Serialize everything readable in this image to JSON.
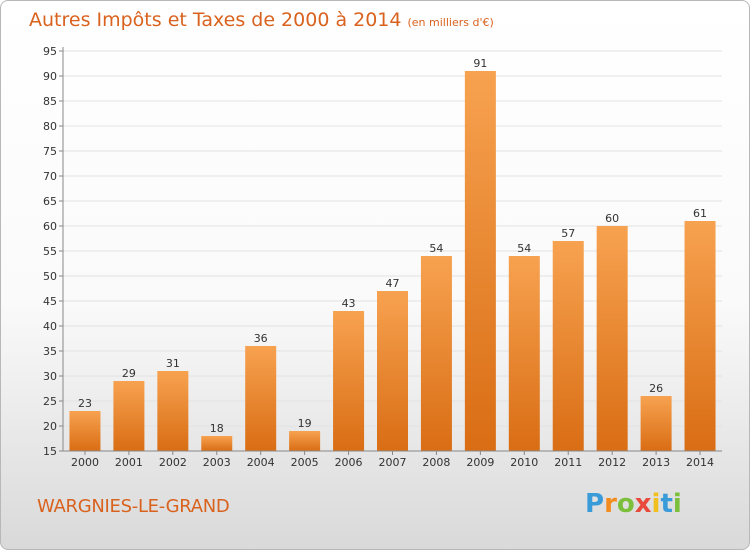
{
  "chart_data": {
    "type": "bar",
    "title": "Autres Impôts et Taxes de 2000 à 2014",
    "subtitle": "(en milliers d'€)",
    "categories": [
      "2000",
      "2001",
      "2002",
      "2003",
      "2004",
      "2005",
      "2006",
      "2007",
      "2008",
      "2009",
      "2010",
      "2011",
      "2012",
      "2013",
      "2014"
    ],
    "values": [
      23,
      29,
      31,
      18,
      36,
      19,
      43,
      47,
      54,
      91,
      54,
      57,
      60,
      26,
      61
    ],
    "ylim": [
      15,
      95
    ],
    "yticks": [
      15,
      20,
      25,
      30,
      35,
      40,
      45,
      50,
      55,
      60,
      65,
      70,
      75,
      80,
      85,
      90,
      95
    ],
    "grid": true,
    "bar_color": "#f0882d"
  },
  "footer": {
    "city": "WARGNIES-LE-GRAND",
    "logo_letters": [
      "P",
      "r",
      "o",
      "x",
      "i",
      "t",
      "i"
    ],
    "logo_colors": [
      "#3a9bd9",
      "#f28c1e",
      "#7bbf3a",
      "#e84a3b",
      "#f2c01e",
      "#3a9bd9",
      "#7bbf3a"
    ]
  }
}
